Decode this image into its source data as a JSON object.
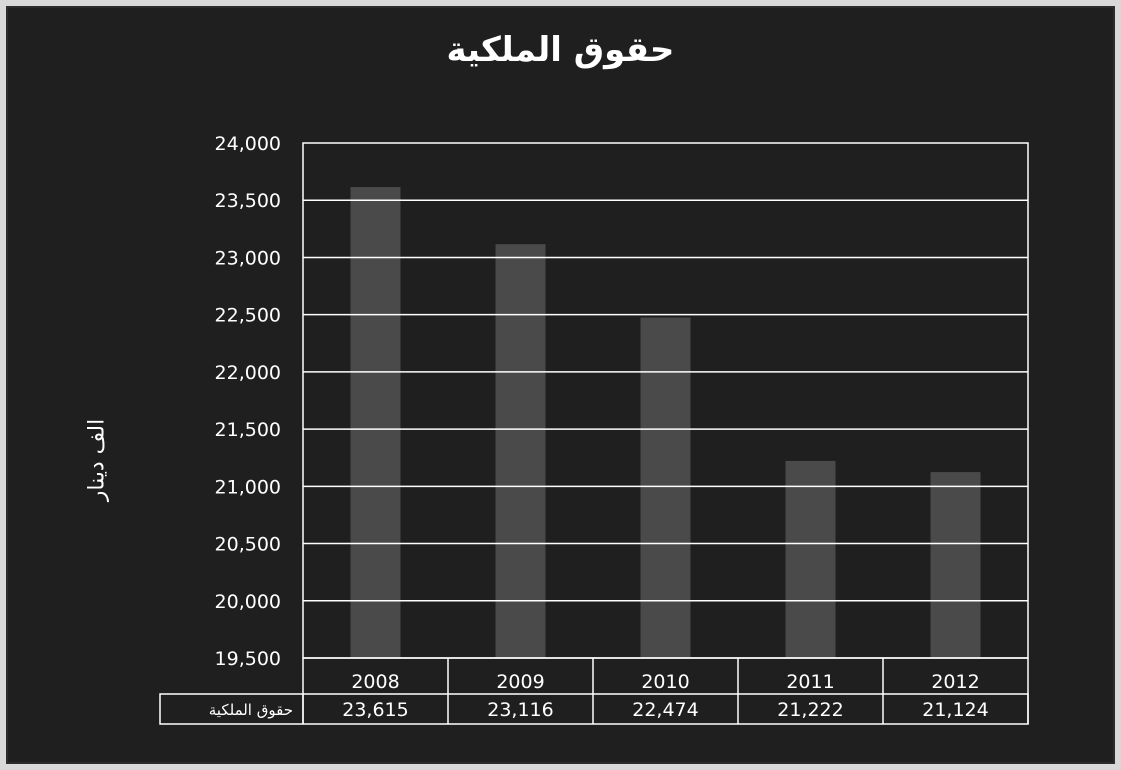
{
  "chart_data": {
    "type": "bar",
    "title": "حقوق الملكية",
    "ylabel": "الف دينار",
    "xlabel": "",
    "categories": [
      "2008",
      "2009",
      "2010",
      "2011",
      "2012"
    ],
    "series": [
      {
        "name": "حقوق الملكية",
        "values": [
          23615,
          23116,
          22474,
          21222,
          21124
        ]
      }
    ],
    "ylim": [
      19500,
      24000
    ],
    "yticks": [
      19500,
      20000,
      20500,
      21000,
      21500,
      22000,
      22500,
      23000,
      23500,
      24000
    ],
    "ytick_labels": [
      "19,500",
      "20,000",
      "20,500",
      "21,000",
      "21,500",
      "22,000",
      "22,500",
      "23,000",
      "23,500",
      "24,000"
    ],
    "data_table": {
      "row_label": "حقوق الملكية",
      "cells": [
        "23,615",
        "23,116",
        "22,474",
        "21,222",
        "21,124"
      ]
    },
    "grid": true,
    "colors": {
      "background": "#1f1f1f",
      "bar": "#5a5a5a",
      "grid": "#ffffff",
      "text": "#ffffff"
    }
  }
}
